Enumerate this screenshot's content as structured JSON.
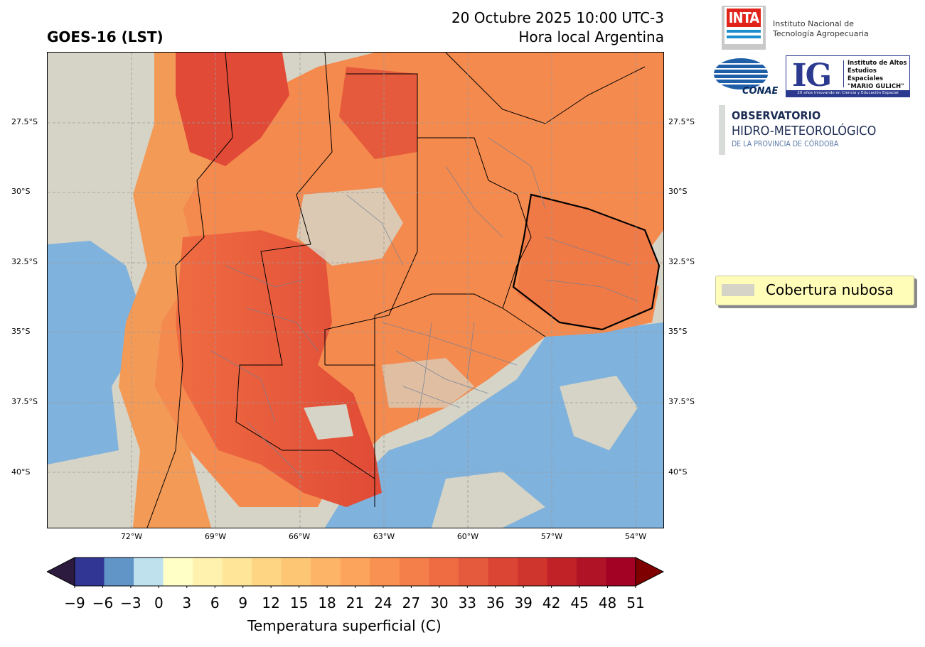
{
  "header": {
    "title_left": "GOES-16 (LST)",
    "date_line": "20 Octubre 2025 10:00 UTC-3",
    "local_line": "Hora local Argentina"
  },
  "map": {
    "lat_labels": [
      "27.5°S",
      "30°S",
      "32.5°S",
      "35°S",
      "37.5°S",
      "40°S"
    ],
    "lon_labels": [
      "72°W",
      "69°W",
      "66°W",
      "63°W",
      "60°W",
      "57°W",
      "54°W"
    ],
    "cloud_color": "#d6d4c6",
    "ocean_color": "#7fb2dc"
  },
  "legend": {
    "cloud_label": "Cobertura nubosa"
  },
  "colorbar": {
    "label": "Temperatura superficial (C)",
    "ticks": [
      "−9",
      "−6",
      "−3",
      "0",
      "3",
      "6",
      "9",
      "12",
      "15",
      "18",
      "21",
      "24",
      "27",
      "30",
      "33",
      "36",
      "39",
      "42",
      "45",
      "48",
      "51"
    ],
    "under_color": "#2c1b3f",
    "over_color": "#7f0000",
    "colors": [
      "#313695",
      "#6195c8",
      "#bfe1ee",
      "#ffffc6",
      "#fff2ae",
      "#fee597",
      "#fed683",
      "#fdc675",
      "#fdb466",
      "#fca45b",
      "#f99152",
      "#f57f4a",
      "#ef6c42",
      "#e55a3c",
      "#db4634",
      "#cf352c",
      "#c02227",
      "#b01226",
      "#a30225"
    ]
  },
  "logos": {
    "inta_word": "INTA",
    "inta_line1": "Instituto Nacional de",
    "inta_line2": "Tecnología Agropecuaria",
    "conae_word": "CONAE",
    "ig_letters": "IG",
    "ig_line1": "Instituto de Altos",
    "ig_line2": "Estudios Espaciales",
    "ig_line3": "\"MARIO GULICH\"",
    "ig_bar": "20 años innovando en Ciencia y Educación Espacial",
    "obs_title": "OBSERVATORIO",
    "obs_sub": "HIDRO-METEOROLÓGICO",
    "obs_prov": "DE LA PROVINCIA DE CÓRDOBA"
  }
}
